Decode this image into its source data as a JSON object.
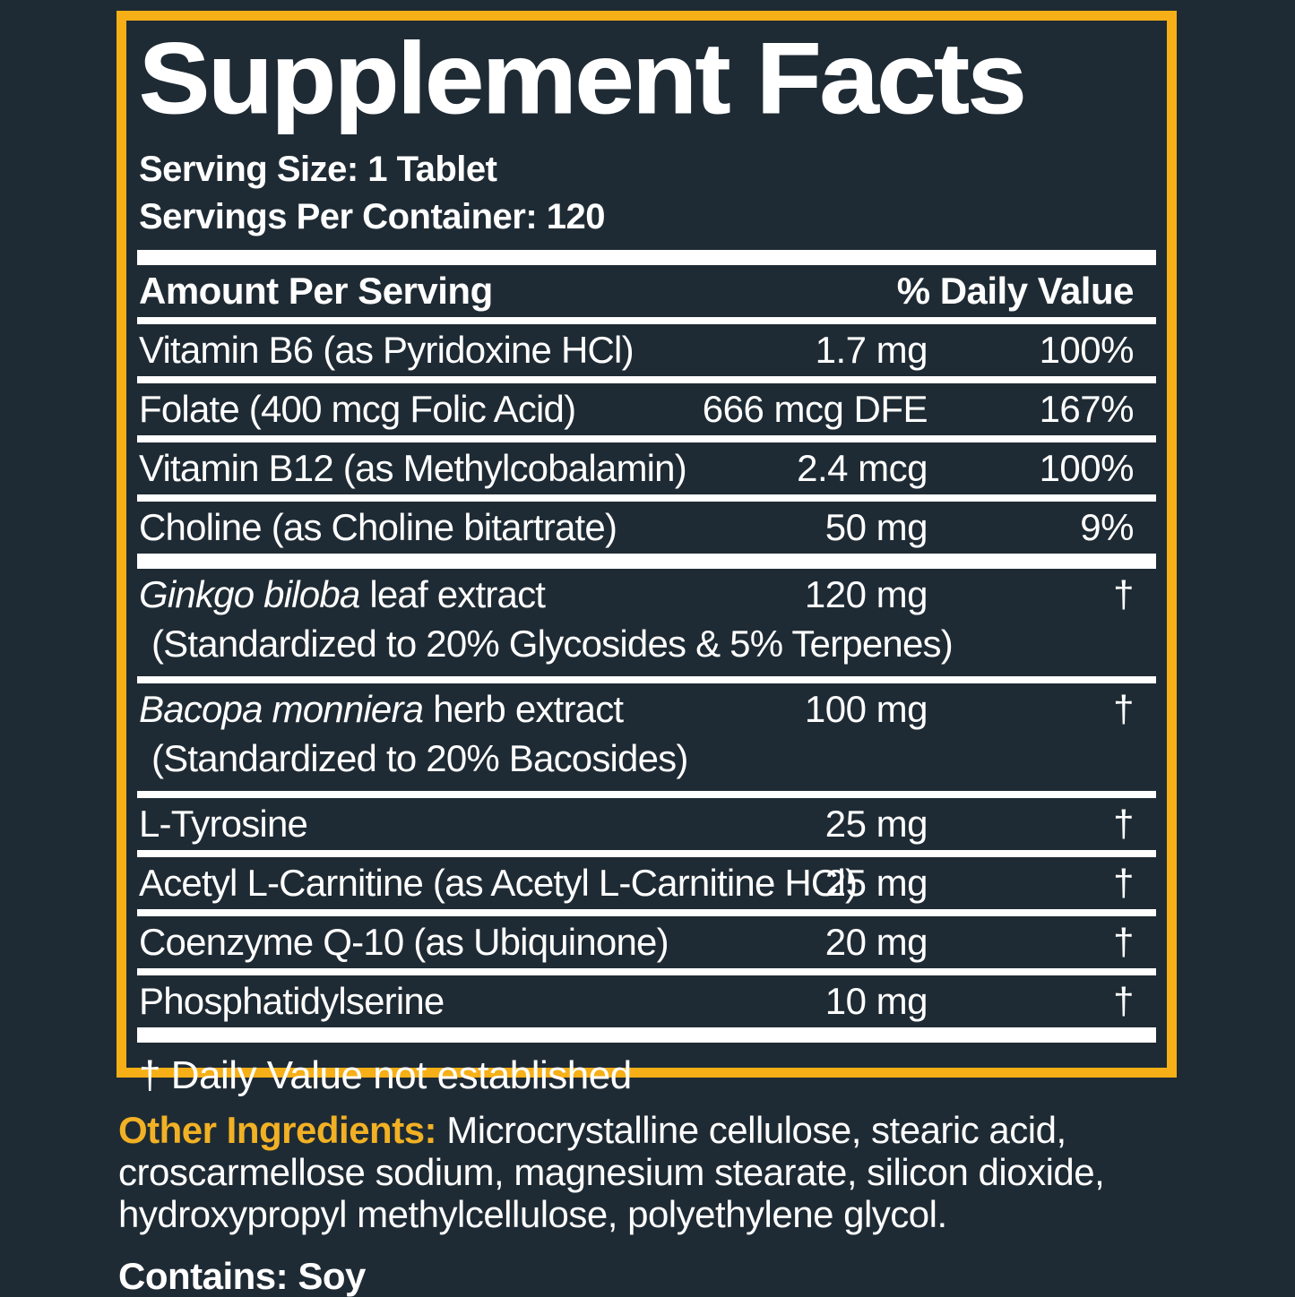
{
  "colors": {
    "background": "#1F2B34",
    "accent_yellow": "#F6AF16",
    "text_white": "#FFFFFF",
    "separator": "#FFFFFF"
  },
  "panel": {
    "title": "Supplement Facts",
    "serving_size": "Serving Size: 1 Tablet",
    "servings_per_container": "Servings Per Container: 120",
    "header": {
      "left": "Amount Per Serving",
      "right": "% Daily Value"
    },
    "rows": [
      {
        "name_italic": "",
        "name": "Vitamin B6 (as Pyridoxine HCl)",
        "amount": "1.7 mg",
        "dv": "100%",
        "subline": "",
        "thick_after": false
      },
      {
        "name_italic": "",
        "name": "Folate (400 mcg Folic Acid)",
        "amount": "666 mcg DFE",
        "dv": "167%",
        "subline": "",
        "thick_after": false
      },
      {
        "name_italic": "",
        "name": "Vitamin B12 (as Methylcobalamin)",
        "amount": "2.4 mcg",
        "dv": "100%",
        "subline": "",
        "thick_after": false
      },
      {
        "name_italic": "",
        "name": "Choline (as Choline bitartrate)",
        "amount": "50 mg",
        "dv": "9%",
        "subline": "",
        "thick_after": true
      },
      {
        "name_italic": "Ginkgo biloba",
        "name": " leaf extract",
        "amount": "120 mg",
        "dv": "†",
        "subline": "(Standardized to 20% Glycosides & 5% Terpenes)",
        "thick_after": false
      },
      {
        "name_italic": "Bacopa monniera",
        "name": " herb extract",
        "amount": "100 mg",
        "dv": "†",
        "subline": "(Standardized to 20% Bacosides)",
        "thick_after": false
      },
      {
        "name_italic": "",
        "name": "L-Tyrosine",
        "amount": "25 mg",
        "dv": "†",
        "subline": "",
        "thick_after": false
      },
      {
        "name_italic": "",
        "name": "Acetyl L-Carnitine (as Acetyl L-Carnitine HCl)",
        "amount": "25 mg",
        "dv": "†",
        "subline": "",
        "thick_after": false
      },
      {
        "name_italic": "",
        "name": "Coenzyme Q-10 (as Ubiquinone)",
        "amount": "20 mg",
        "dv": "†",
        "subline": "",
        "thick_after": false
      },
      {
        "name_italic": "",
        "name": "Phosphatidylserine",
        "amount": "10 mg",
        "dv": "†",
        "subline": "",
        "thick_after": true
      }
    ],
    "footnote": "† Daily Value not established"
  },
  "other_ingredients": {
    "label": "Other Ingredients:",
    "text": " Microcrystalline cellulose, stearic acid, croscarmellose sodium, magnesium stearate, silicon dioxide, hydroxypropyl methylcellulose, polyethylene glycol.",
    "contains": "Contains: Soy"
  }
}
